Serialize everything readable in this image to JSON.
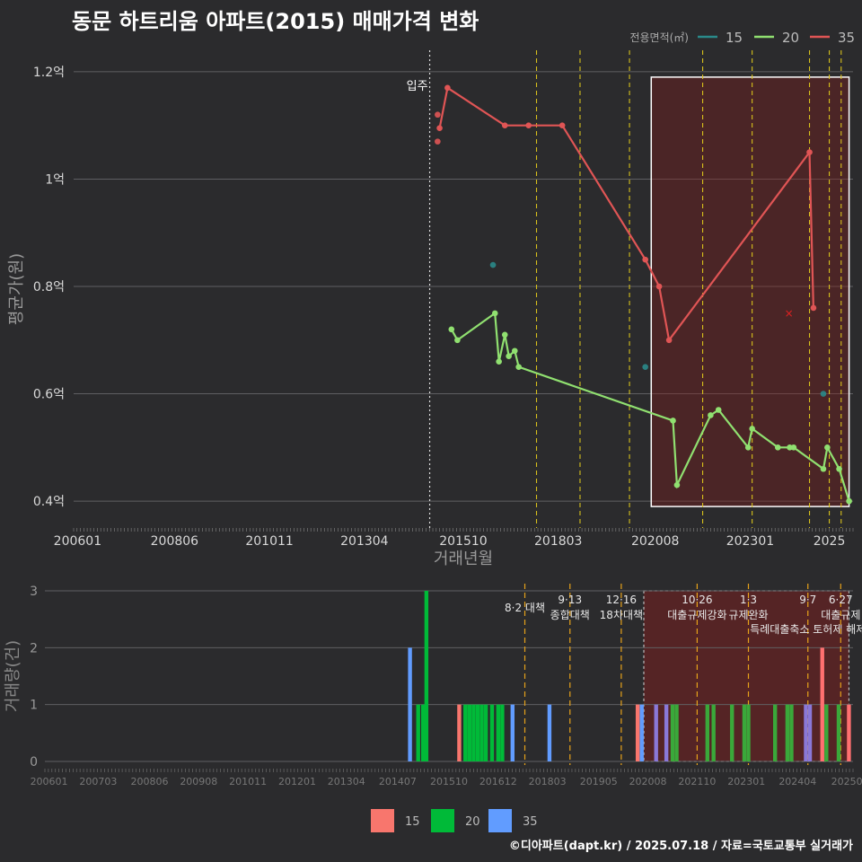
{
  "title": "동문 하트리움 아파트(2015) 매매가격 변화",
  "credit": "©디아파트(dapt.kr) / 2025.07.18 / 자료=국토교통부 실거래가",
  "chart_data": [
    {
      "type": "line",
      "title": "동문 하트리움 아파트(2015) 매매가격 변화",
      "xlabel": "거래년월",
      "ylabel": "평균가(원)",
      "legend_title": "전용면적(㎡)",
      "legend_position": "top-right",
      "x_ticks": [
        "200601",
        "200806",
        "201011",
        "201304",
        "201510",
        "201803",
        "202008",
        "202301",
        "2025"
      ],
      "y_ticks": [
        {
          "v": 0.4,
          "label": "0.4억"
        },
        {
          "v": 0.6,
          "label": "0.6억"
        },
        {
          "v": 0.8,
          "label": "0.8억"
        },
        {
          "v": 1.0,
          "label": "1억"
        },
        {
          "v": 1.2,
          "label": "1.2억"
        }
      ],
      "xlim": [
        2005.9,
        2025.6
      ],
      "ylim": [
        0.35,
        1.24
      ],
      "move_in_label": "입주",
      "move_in_x": 2014.9,
      "policy_lines": [
        2017.6,
        2018.7,
        2019.95,
        2021.8,
        2023.05,
        2024.5,
        2025.0,
        2025.3
      ],
      "highlight": {
        "x0": 2020.5,
        "x1": 2025.5,
        "y0": 0.39,
        "y1": 1.19
      },
      "series": [
        {
          "name": "15",
          "color": "#2a8a8a",
          "points": [
            [
              2016.5,
              0.84
            ],
            [
              2020.35,
              0.65
            ],
            [
              2024.85,
              0.6
            ]
          ],
          "line": []
        },
        {
          "name": "20",
          "color": "#90e070",
          "points": [],
          "line": [
            [
              2015.45,
              0.72
            ],
            [
              2015.6,
              0.7
            ],
            [
              2016.55,
              0.75
            ],
            [
              2016.65,
              0.66
            ],
            [
              2016.8,
              0.71
            ],
            [
              2016.9,
              0.67
            ],
            [
              2017.05,
              0.68
            ],
            [
              2017.15,
              0.65
            ],
            [
              2021.05,
              0.55
            ],
            [
              2021.15,
              0.43
            ],
            [
              2022.0,
              0.56
            ],
            [
              2022.2,
              0.57
            ],
            [
              2022.95,
              0.5
            ],
            [
              2023.05,
              0.535
            ],
            [
              2023.7,
              0.5
            ],
            [
              2024.0,
              0.5
            ],
            [
              2024.1,
              0.5
            ],
            [
              2024.85,
              0.46
            ],
            [
              2024.95,
              0.5
            ],
            [
              2025.25,
              0.46
            ],
            [
              2025.5,
              0.4
            ]
          ]
        },
        {
          "name": "35",
          "color": "#e05555",
          "points": [
            [
              2015.1,
              1.12
            ],
            [
              2015.1,
              1.07
            ]
          ],
          "line": [
            [
              2015.15,
              1.095
            ],
            [
              2015.35,
              1.17
            ],
            [
              2016.8,
              1.1
            ],
            [
              2017.4,
              1.1
            ],
            [
              2018.25,
              1.1
            ],
            [
              2020.35,
              0.85
            ],
            [
              2020.7,
              0.8
            ],
            [
              2020.95,
              0.7
            ],
            [
              2024.5,
              1.05
            ],
            [
              2024.6,
              0.76
            ]
          ]
        }
      ],
      "marker_x": {
        "x": 2023.98,
        "y": 0.75
      }
    },
    {
      "type": "bar",
      "xlabel": "",
      "ylabel": "거래량(건)",
      "x_ticks": [
        "200601",
        "200703",
        "200806",
        "200908",
        "201011",
        "201201",
        "201304",
        "201407",
        "201510",
        "201612",
        "201803",
        "201905",
        "202008",
        "202110",
        "202301",
        "202404",
        "20250"
      ],
      "y_ticks": [
        0,
        1,
        2,
        3
      ],
      "ylim": [
        0,
        3
      ],
      "xlim": [
        2005.9,
        2025.6
      ],
      "legend": [
        {
          "name": "15",
          "color": "#f8766d"
        },
        {
          "name": "20",
          "color": "#00ba38"
        },
        {
          "name": "35",
          "color": "#619cff"
        }
      ],
      "policies": [
        {
          "x": 2017.6,
          "line1": "8·2 대책",
          "line2": ""
        },
        {
          "x": 2018.7,
          "line1": "9·13",
          "line2": "종합대책"
        },
        {
          "x": 2019.95,
          "line1": "12·16",
          "line2": "18차대책"
        },
        {
          "x": 2021.8,
          "line1": "10·26",
          "line2": "대출규제강화"
        },
        {
          "x": 2023.05,
          "line1": "1·3",
          "line2": "규제완화"
        },
        {
          "x": 2024.5,
          "line1": "9·7",
          "line2": "특례대출축소 토허제 해제"
        },
        {
          "x": 2025.3,
          "line1": "6·27",
          "line2": "대출규제"
        }
      ],
      "bars": [
        {
          "x": 2014.8,
          "v": 2,
          "s": "35"
        },
        {
          "x": 2015.0,
          "v": 1,
          "s": "20"
        },
        {
          "x": 2015.12,
          "v": 1,
          "s": "20"
        },
        {
          "x": 2015.2,
          "v": 3,
          "s": "20"
        },
        {
          "x": 2016.0,
          "v": 1,
          "s": "15"
        },
        {
          "x": 2016.15,
          "v": 1,
          "s": "20"
        },
        {
          "x": 2016.25,
          "v": 1,
          "s": "20"
        },
        {
          "x": 2016.35,
          "v": 1,
          "s": "20"
        },
        {
          "x": 2016.45,
          "v": 1,
          "s": "20"
        },
        {
          "x": 2016.55,
          "v": 1,
          "s": "20"
        },
        {
          "x": 2016.65,
          "v": 1,
          "s": "20"
        },
        {
          "x": 2016.8,
          "v": 1,
          "s": "20"
        },
        {
          "x": 2016.95,
          "v": 1,
          "s": "20"
        },
        {
          "x": 2017.05,
          "v": 1,
          "s": "20"
        },
        {
          "x": 2017.3,
          "v": 1,
          "s": "35"
        },
        {
          "x": 2018.2,
          "v": 1,
          "s": "35"
        },
        {
          "x": 2020.35,
          "v": 1,
          "s": "15"
        },
        {
          "x": 2020.45,
          "v": 1,
          "s": "35"
        },
        {
          "x": 2020.8,
          "v": 1,
          "s": "35"
        },
        {
          "x": 2021.05,
          "v": 1,
          "s": "35"
        },
        {
          "x": 2021.2,
          "v": 1,
          "s": "20"
        },
        {
          "x": 2021.3,
          "v": 1,
          "s": "20"
        },
        {
          "x": 2022.05,
          "v": 1,
          "s": "20"
        },
        {
          "x": 2022.2,
          "v": 1,
          "s": "20"
        },
        {
          "x": 2022.65,
          "v": 1,
          "s": "20"
        },
        {
          "x": 2022.95,
          "v": 1,
          "s": "20"
        },
        {
          "x": 2023.05,
          "v": 1,
          "s": "20"
        },
        {
          "x": 2023.7,
          "v": 1,
          "s": "20"
        },
        {
          "x": 2024.0,
          "v": 1,
          "s": "20"
        },
        {
          "x": 2024.1,
          "v": 1,
          "s": "20"
        },
        {
          "x": 2024.45,
          "v": 1,
          "s": "35"
        },
        {
          "x": 2024.55,
          "v": 1,
          "s": "35"
        },
        {
          "x": 2024.85,
          "v": 2,
          "s": "15"
        },
        {
          "x": 2024.95,
          "v": 1,
          "s": "20"
        },
        {
          "x": 2025.25,
          "v": 1,
          "s": "20"
        },
        {
          "x": 2025.5,
          "v": 1,
          "s": "15"
        }
      ]
    }
  ]
}
